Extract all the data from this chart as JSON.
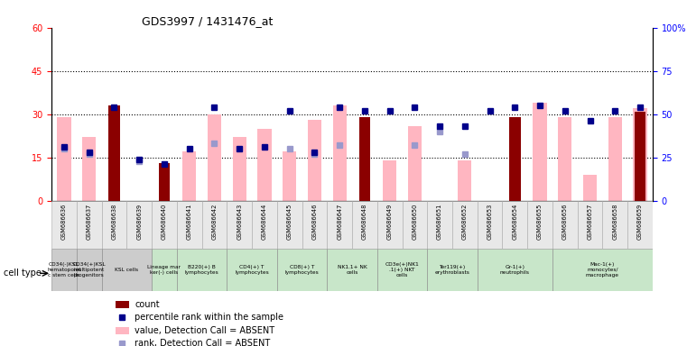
{
  "title": "GDS3997 / 1431476_at",
  "samples": [
    "GSM686636",
    "GSM686637",
    "GSM686638",
    "GSM686639",
    "GSM686640",
    "GSM686641",
    "GSM686642",
    "GSM686643",
    "GSM686644",
    "GSM686645",
    "GSM686646",
    "GSM686647",
    "GSM686648",
    "GSM686649",
    "GSM686650",
    "GSM686651",
    "GSM686652",
    "GSM686653",
    "GSM686654",
    "GSM686655",
    "GSM686656",
    "GSM686657",
    "GSM686658",
    "GSM686659"
  ],
  "count": [
    0,
    0,
    33,
    0,
    13,
    0,
    0,
    0,
    0,
    0,
    0,
    0,
    29,
    0,
    0,
    0,
    0,
    0,
    29,
    0,
    0,
    0,
    0,
    31
  ],
  "percentile_rank": [
    31,
    28,
    54,
    24,
    21,
    30,
    54,
    30,
    31,
    52,
    28,
    54,
    52,
    52,
    54,
    43,
    43,
    52,
    54,
    55,
    52,
    46,
    52,
    54
  ],
  "value_absent": [
    29,
    22,
    0,
    0,
    0,
    17,
    30,
    22,
    25,
    17,
    28,
    33,
    0,
    14,
    26,
    0,
    14,
    0,
    0,
    34,
    29,
    9,
    29,
    32
  ],
  "rank_absent": [
    30,
    27,
    0,
    23,
    0,
    0,
    33,
    0,
    0,
    30,
    27,
    32,
    0,
    0,
    32,
    40,
    27,
    0,
    0,
    0,
    0,
    0,
    0,
    0
  ],
  "cell_types": [
    {
      "label": "CD34(-)KSL\nhematopoiet\nc stem cells",
      "start": 0,
      "end": 0,
      "color": "#cccccc"
    },
    {
      "label": "CD34(+)KSL\nmultipotent\nprogenitors",
      "start": 1,
      "end": 1,
      "color": "#cccccc"
    },
    {
      "label": "KSL cells",
      "start": 2,
      "end": 3,
      "color": "#cccccc"
    },
    {
      "label": "Lineage mar\nker(-) cells",
      "start": 4,
      "end": 4,
      "color": "#c8e6c9"
    },
    {
      "label": "B220(+) B\nlymphocytes",
      "start": 5,
      "end": 6,
      "color": "#c8e6c9"
    },
    {
      "label": "CD4(+) T\nlymphocytes",
      "start": 7,
      "end": 8,
      "color": "#c8e6c9"
    },
    {
      "label": "CD8(+) T\nlymphocytes",
      "start": 9,
      "end": 10,
      "color": "#c8e6c9"
    },
    {
      "label": "NK1.1+ NK\ncells",
      "start": 11,
      "end": 12,
      "color": "#c8e6c9"
    },
    {
      "label": "CD3e(+)NK1\n.1(+) NKT\ncells",
      "start": 13,
      "end": 14,
      "color": "#c8e6c9"
    },
    {
      "label": "Ter119(+)\nerythroblasts",
      "start": 15,
      "end": 16,
      "color": "#c8e6c9"
    },
    {
      "label": "Gr-1(+)\nneutrophils",
      "start": 17,
      "end": 19,
      "color": "#c8e6c9"
    },
    {
      "label": "Mac-1(+)\nmonocytes/\nmacrophage",
      "start": 20,
      "end": 23,
      "color": "#c8e6c9"
    }
  ],
  "ylim_left": [
    0,
    60
  ],
  "ylim_right": [
    0,
    100
  ],
  "yticks_left": [
    0,
    15,
    30,
    45,
    60
  ],
  "yticks_right": [
    0,
    25,
    50,
    75,
    100
  ],
  "bar_color_count": "#8B0000",
  "bar_color_value_absent": "#FFB6C1",
  "dot_color_percentile": "#00008B",
  "dot_color_rank_absent": "#9999CC"
}
